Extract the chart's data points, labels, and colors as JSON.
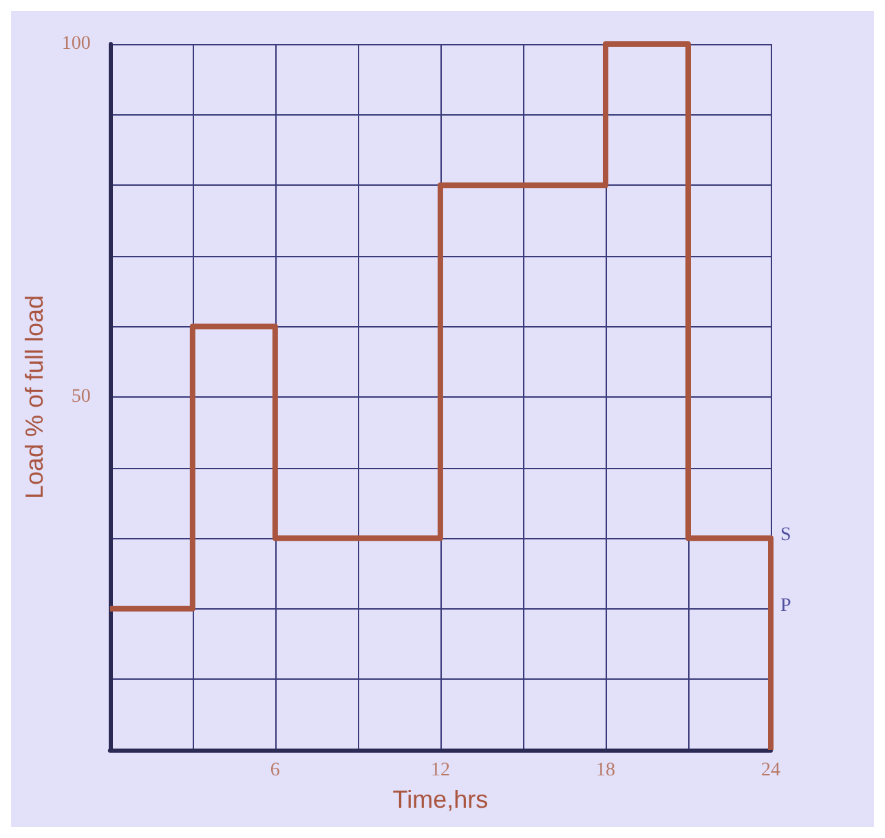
{
  "chart_data": {
    "type": "step",
    "xlabel": "Time,hrs",
    "ylabel": "Load % of full load",
    "x": [
      0,
      3,
      6,
      12,
      18,
      21,
      24
    ],
    "values": [
      20,
      60,
      30,
      80,
      100,
      30,
      0
    ],
    "color": "#a9553f",
    "xlim": [
      0,
      24
    ],
    "ylim": [
      0,
      100
    ],
    "xticks": [
      {
        "value": 0,
        "label": null
      },
      {
        "value": 3,
        "label": null
      },
      6,
      {
        "value": 9,
        "label": null
      },
      12,
      {
        "value": 15,
        "label": null
      },
      18,
      {
        "value": 21,
        "label": null
      },
      24
    ],
    "yticks": [
      {
        "value": 0,
        "label": null
      },
      {
        "value": 10,
        "label": null
      },
      {
        "value": 20,
        "label": null
      },
      {
        "value": 30,
        "label": null
      },
      {
        "value": 40,
        "label": null
      },
      50,
      {
        "value": 60,
        "label": null
      },
      {
        "value": 70,
        "label": null
      },
      {
        "value": 80,
        "label": null
      },
      {
        "value": 90,
        "label": null
      },
      100
    ],
    "grid": true,
    "marker": "none",
    "line_style": "solid",
    "annotations": [
      {
        "text": "S",
        "x": 24,
        "y": 30
      },
      {
        "text": "P",
        "x": 24,
        "y": 20
      }
    ]
  }
}
